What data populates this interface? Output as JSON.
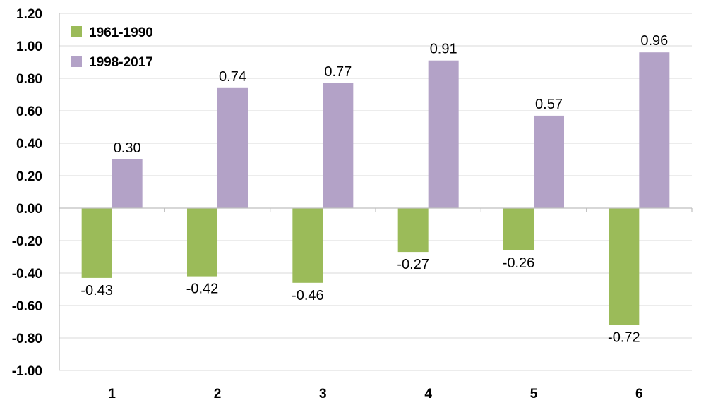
{
  "chart_data": {
    "type": "bar",
    "categories": [
      "1",
      "2",
      "3",
      "4",
      "5",
      "6"
    ],
    "series": [
      {
        "name": "1961-1990",
        "color": "#9bbb59",
        "values": [
          -0.43,
          -0.42,
          -0.46,
          -0.27,
          -0.26,
          -0.72
        ]
      },
      {
        "name": "1998-2017",
        "color": "#b3a2c7",
        "values": [
          0.3,
          0.74,
          0.77,
          0.91,
          0.57,
          0.96
        ]
      }
    ],
    "data_labels": [
      [
        "-0.43",
        "-0.42",
        "-0.46",
        "-0.27",
        "-0.26",
        "-0.72"
      ],
      [
        "0.30",
        "0.74",
        "0.77",
        "0.91",
        "0.57",
        "0.96"
      ]
    ],
    "y_ticks": [
      "-1.00",
      "-0.80",
      "-0.60",
      "-0.40",
      "-0.20",
      "0.00",
      "0.20",
      "0.40",
      "0.60",
      "0.80",
      "1.00",
      "1.20"
    ],
    "ylim": [
      -1.0,
      1.2
    ],
    "title": "",
    "xlabel": "",
    "ylabel": "",
    "grid": true,
    "legend_position": "top-left"
  }
}
